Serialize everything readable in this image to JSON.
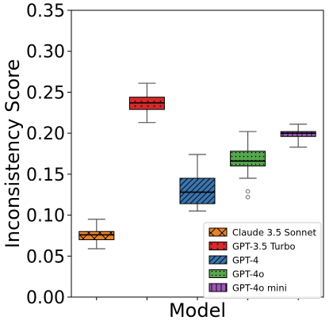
{
  "chart_data": {
    "type": "box",
    "xlabel": "Model",
    "ylabel": "Inconsistency Score",
    "ylim": [
      0.0,
      0.35
    ],
    "yticks": [
      "0.00",
      "0.05",
      "0.10",
      "0.15",
      "0.20",
      "0.25",
      "0.30",
      "0.35"
    ],
    "legend_position": "lower-right",
    "series": [
      {
        "name": "Claude 3.5 Sonnet",
        "color": "#e8822a",
        "hatch": "x",
        "whisker_low": 0.059,
        "q1": 0.07,
        "median": 0.076,
        "q3": 0.08,
        "whisker_high": 0.095,
        "outliers": []
      },
      {
        "name": "GPT-3.5 Turbo",
        "color": "#d42b2b",
        "hatch": "stars",
        "whisker_low": 0.213,
        "q1": 0.229,
        "median": 0.237,
        "q3": 0.244,
        "whisker_high": 0.261,
        "outliers": []
      },
      {
        "name": "GPT-4",
        "color": "#3b75af",
        "hatch": "diagonal",
        "whisker_low": 0.105,
        "q1": 0.114,
        "median": 0.128,
        "q3": 0.145,
        "whisker_high": 0.174,
        "outliers": []
      },
      {
        "name": "GPT-4o",
        "color": "#57a64f",
        "hatch": "dots",
        "whisker_low": 0.145,
        "q1": 0.16,
        "median": 0.166,
        "q3": 0.178,
        "whisker_high": 0.202,
        "outliers": [
          0.129,
          0.122
        ]
      },
      {
        "name": "GPT-4o mini",
        "color": "#9b59b6",
        "hatch": "vertical",
        "whisker_low": 0.183,
        "q1": 0.196,
        "median": 0.2,
        "q3": 0.202,
        "whisker_high": 0.211,
        "outliers": []
      }
    ]
  }
}
